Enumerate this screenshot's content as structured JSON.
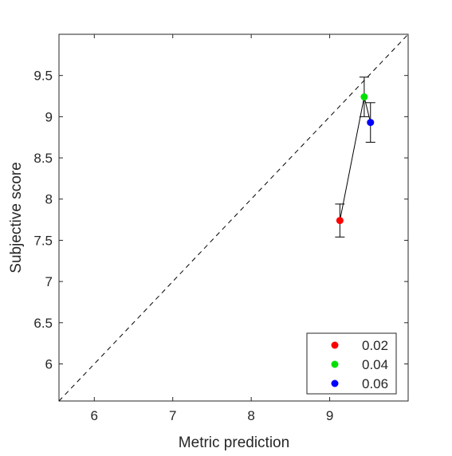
{
  "chart_data": {
    "type": "scatter",
    "title": "",
    "xlabel": "Metric prediction",
    "ylabel": "Subjective score",
    "xlim": [
      5.55,
      10.0
    ],
    "ylim": [
      5.55,
      10.0
    ],
    "xticks": [
      6,
      7,
      8,
      9
    ],
    "yticks": [
      6,
      6.5,
      7,
      7.5,
      8,
      8.5,
      9,
      9.5
    ],
    "xtick_labels": [
      "6",
      "7",
      "8",
      "9"
    ],
    "ytick_labels": [
      "6",
      "6.5",
      "7",
      "7.5",
      "8",
      "8.5",
      "9",
      "9.5"
    ],
    "grid": false,
    "legend_position": "bottom-right",
    "reference_line": {
      "style": "dashed",
      "color": "#000000",
      "from": [
        5.55,
        5.55
      ],
      "to": [
        10.0,
        10.0
      ]
    },
    "connecting_line": {
      "color": "#000000"
    },
    "series": [
      {
        "name": "0.02",
        "color": "#ff0000",
        "x": 9.13,
        "y": 7.74,
        "error_low": 0.2,
        "error_high": 0.2
      },
      {
        "name": "0.04",
        "color": "#00e000",
        "x": 9.44,
        "y": 9.24,
        "error_low": 0.24,
        "error_high": 0.24
      },
      {
        "name": "0.06",
        "color": "#0000ff",
        "x": 9.52,
        "y": 8.93,
        "error_low": 0.24,
        "error_high": 0.24
      }
    ]
  }
}
